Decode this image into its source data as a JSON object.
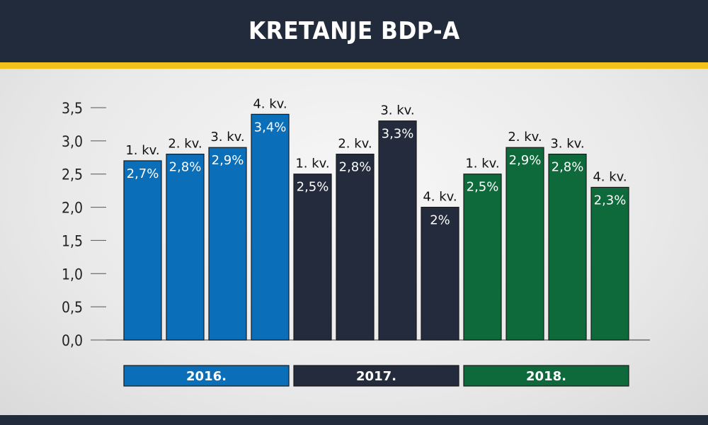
{
  "header": {
    "title": "KRETANJE BDP-A"
  },
  "colors": {
    "header_bg": "#222b3c",
    "accent": "#f2c21b",
    "blue": "#0a6eb8",
    "navy": "#242b3c",
    "green": "#0e6a3a"
  },
  "chart_data": {
    "type": "bar",
    "title": "KRETANJE BDP-A",
    "xlabel": "",
    "ylabel": "",
    "ylim": [
      0,
      3.5
    ],
    "yticks": [
      "0,0",
      "0,5",
      "1,0",
      "1,5",
      "2,0",
      "2,5",
      "3,0",
      "3,5"
    ],
    "grid": false,
    "groups": [
      {
        "label": "2016.",
        "color": "#0a6eb8",
        "bars": [
          {
            "category": "1. kv.",
            "value": 2.7,
            "label": "2,7%"
          },
          {
            "category": "2. kv.",
            "value": 2.8,
            "label": "2,8%"
          },
          {
            "category": "3. kv.",
            "value": 2.9,
            "label": "2,9%"
          },
          {
            "category": "4. kv.",
            "value": 3.4,
            "label": "3,4%"
          }
        ]
      },
      {
        "label": "2017.",
        "color": "#242b3c",
        "bars": [
          {
            "category": "1. kv.",
            "value": 2.5,
            "label": "2,5%"
          },
          {
            "category": "2. kv.",
            "value": 2.8,
            "label": "2,8%"
          },
          {
            "category": "3. kv.",
            "value": 3.3,
            "label": "3,3%"
          },
          {
            "category": "4. kv.",
            "value": 2.0,
            "label": "2%"
          }
        ]
      },
      {
        "label": "2018.",
        "color": "#0e6a3a",
        "bars": [
          {
            "category": "1. kv.",
            "value": 2.5,
            "label": "2,5%"
          },
          {
            "category": "2. kv.",
            "value": 2.9,
            "label": "2,9%"
          },
          {
            "category": "3. kv.",
            "value": 2.8,
            "label": "2,8%"
          },
          {
            "category": "4. kv.",
            "value": 2.3,
            "label": "2,3%"
          }
        ]
      }
    ]
  }
}
